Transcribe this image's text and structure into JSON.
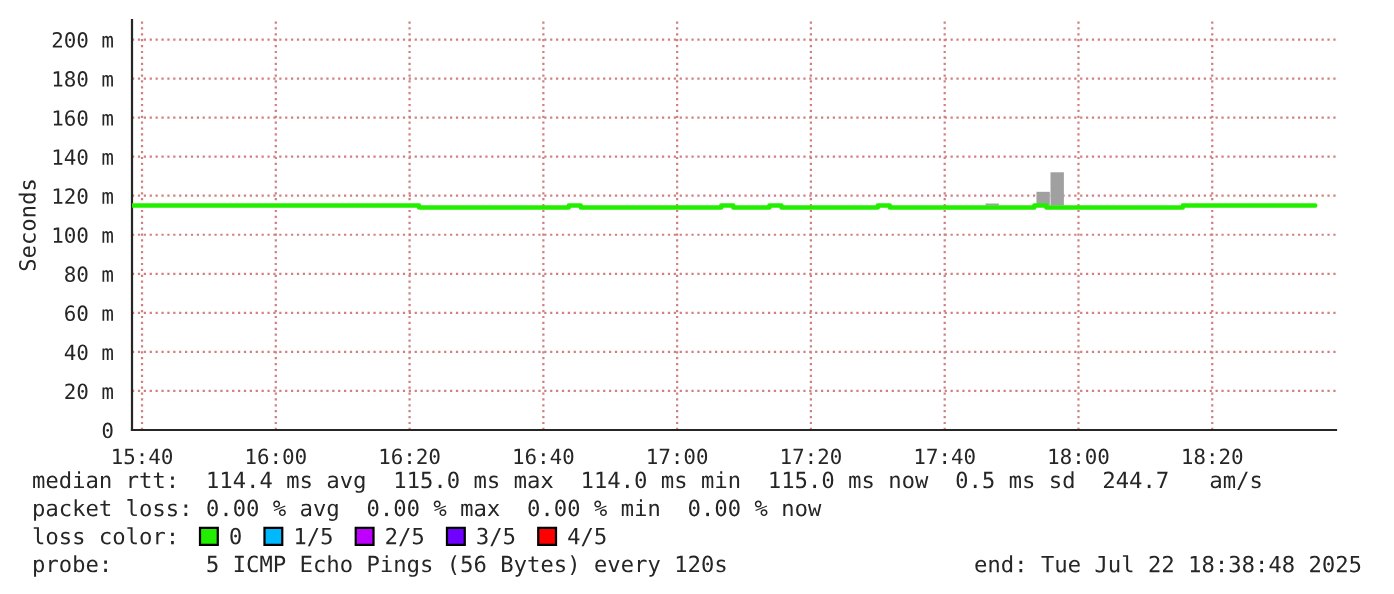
{
  "chart_data": {
    "type": "step",
    "ylabel": "Seconds",
    "xlim": [
      15.6417,
      18.6417
    ],
    "ylim": [
      0,
      210
    ],
    "xticks": [
      {
        "value": 15.6667,
        "label": "15:40"
      },
      {
        "value": 16.0,
        "label": "16:00"
      },
      {
        "value": 16.3333,
        "label": "16:20"
      },
      {
        "value": 16.6667,
        "label": "16:40"
      },
      {
        "value": 17.0,
        "label": "17:00"
      },
      {
        "value": 17.3333,
        "label": "17:20"
      },
      {
        "value": 17.6667,
        "label": "17:40"
      },
      {
        "value": 18.0,
        "label": "18:00"
      },
      {
        "value": 18.3333,
        "label": "18:20"
      }
    ],
    "yticks": [
      0,
      {
        "value": 20,
        "label": "20 m"
      },
      {
        "value": 40,
        "label": "40 m"
      },
      {
        "value": 60,
        "label": "60 m"
      },
      {
        "value": 80,
        "label": "80 m"
      },
      {
        "value": 100,
        "label": "100 m"
      },
      {
        "value": 120,
        "label": "120 m"
      },
      {
        "value": 140,
        "label": "140 m"
      },
      {
        "value": 160,
        "label": "160 m"
      },
      {
        "value": 180,
        "label": "180 m"
      },
      {
        "value": 200,
        "label": "200 m"
      }
    ],
    "grid": true,
    "legend": "bottom",
    "legend_title": "loss color:",
    "series": [
      {
        "type": "bar",
        "color": "#a0a0a0",
        "x": [
          17.785,
          17.912,
          17.947
        ],
        "base": [
          115,
          115,
          115
        ],
        "values": [
          1,
          7,
          17
        ]
      },
      {
        "name": "0",
        "color": "#22ee00",
        "x": [
          15.642,
          16.357,
          16.73,
          16.76,
          17.11,
          17.14,
          17.23,
          17.26,
          17.5,
          17.53,
          17.89,
          17.92,
          18.26,
          18.59
        ],
        "values": [
          115,
          114,
          115,
          114,
          115,
          114,
          115,
          114,
          115,
          114,
          115,
          114,
          115,
          115
        ]
      },
      {
        "name": "1/5",
        "color": "#00b8ff"
      },
      {
        "name": "2/5",
        "color": "#c000ff"
      },
      {
        "name": "3/5",
        "color": "#7000ff"
      },
      {
        "name": "4/5",
        "color": "#ff0000"
      }
    ],
    "annotations": [
      "median rtt:  114.4 ms avg  115.0 ms max  114.0 ms min  115.0 ms now  0.5 ms sd  244.7   am/s",
      "packet loss: 0.00 % avg  0.00 % max  0.00 % min  0.00 % now",
      "probe:       5 ICMP Echo Pings (56 Bytes) every 120s",
      "end: Tue Jul 22 18:38:48 2025"
    ]
  }
}
